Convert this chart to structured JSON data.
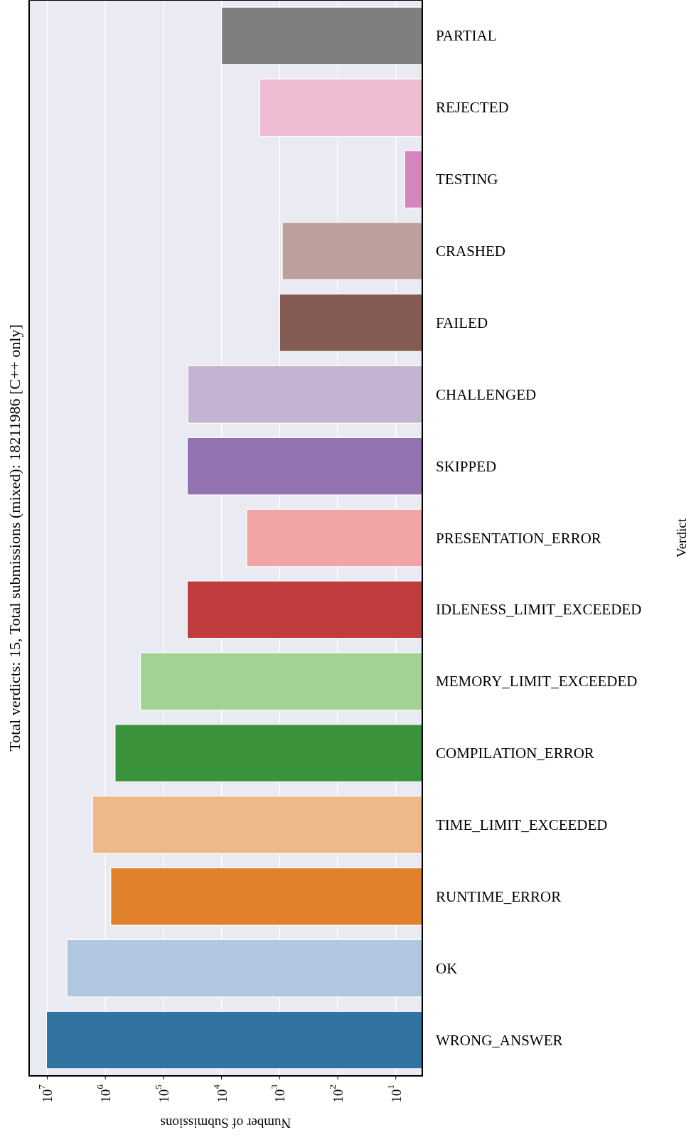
{
  "chart_data": {
    "type": "bar",
    "orientation": "horizontal",
    "log": "x",
    "title": "Total verdicts: 15, Total submissions (mixed): 18211986 [C++ only]",
    "xlabel": "Number of Submissions",
    "ylabel": "Verdict",
    "categories": [
      "PARTIAL",
      "REJECTED",
      "TESTING",
      "CRASHED",
      "FAILED",
      "CHALLENGED",
      "SKIPPED",
      "PRESENTATION_ERROR",
      "IDLENESS_LIMIT_EXCEEDED",
      "MEMORY_LIMIT_EXCEEDED",
      "COMPILATION_ERROR",
      "TIME_LIMIT_EXCEEDED",
      "RUNTIME_ERROR",
      "OK",
      "WRONG_ANSWER"
    ],
    "values": [
      10000,
      2200,
      7,
      900,
      1000,
      38000,
      39000,
      3700,
      39000,
      250000,
      680000,
      1660000,
      810000,
      4600000,
      10300000
    ],
    "colors": [
      "#7f7f7f",
      "#efbdd3",
      "#d684bd",
      "#bca09b",
      "#845b53",
      "#c3b3d0",
      "#9372b2",
      "#f2a5a4",
      "#c03d3e",
      "#a0d394",
      "#3a923a",
      "#edb98a",
      "#e1812c",
      "#b1c6df",
      "#3274a1"
    ],
    "xlim": [
      20500000,
      3.5
    ],
    "xticks": [
      {
        "value": 10000000,
        "label": "10$^{7}$"
      },
      {
        "value": 1000000,
        "label": "10$^{6}$"
      },
      {
        "value": 100000,
        "label": "10$^{5}$"
      },
      {
        "value": 10000,
        "label": "10$^{4}$"
      },
      {
        "value": 1000,
        "label": "10$^{3}$"
      },
      {
        "value": 100,
        "label": "10$^{2}$"
      },
      {
        "value": 10,
        "label": "10$^{1}$"
      }
    ],
    "grid": true
  }
}
